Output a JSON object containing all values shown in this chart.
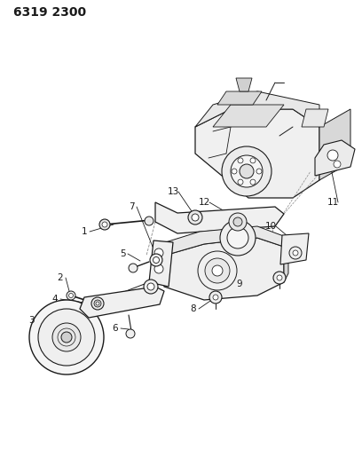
{
  "title": "6319 2300",
  "title_fontsize": 10,
  "title_fontweight": "bold",
  "background_color": "#ffffff",
  "line_color": "#1a1a1a",
  "label_color": "#1a1a1a",
  "label_fontsize": 7.5,
  "fig_width": 4.08,
  "fig_height": 5.33,
  "dpi": 100
}
